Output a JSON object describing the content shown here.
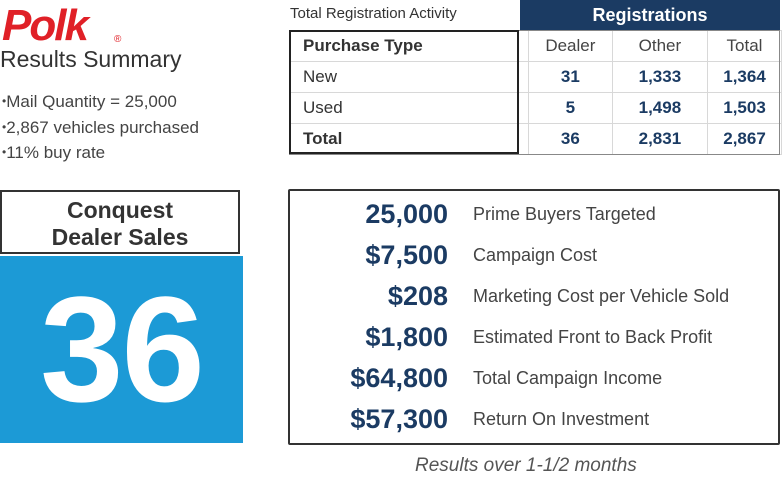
{
  "brand": {
    "logo_text": "Polk",
    "logo_mark": "®",
    "color": "#e02027"
  },
  "summary": {
    "title": "Results Summary",
    "bullets": [
      "Mail Quantity = 25,000",
      "2,867 vehicles purchased",
      "11% buy rate"
    ]
  },
  "conquest": {
    "line1": "Conquest",
    "line2": "Dealer Sales",
    "value": "36",
    "accent": "#1c9ad6"
  },
  "registration": {
    "title": "Total Registration Activity",
    "group_header": "Registrations",
    "header_color": "#1b3b63",
    "columns": [
      "Purchase Type",
      "Dealer",
      "Other",
      "Total"
    ],
    "rows": [
      {
        "type": "New",
        "dealer": "31",
        "other": "1,333",
        "total": "1,364"
      },
      {
        "type": "Used",
        "dealer": "5",
        "other": "1,498",
        "total": "1,503"
      },
      {
        "type": "Total",
        "dealer": "36",
        "other": "2,831",
        "total": "2,867"
      }
    ]
  },
  "metrics": [
    {
      "value": "25,000",
      "label": "Prime Buyers Targeted"
    },
    {
      "value": "$7,500",
      "label": "Campaign Cost"
    },
    {
      "value": "$208",
      "label": "Marketing Cost per Vehicle Sold"
    },
    {
      "value": "$1,800",
      "label": "Estimated Front to Back Profit"
    },
    {
      "value": "$64,800",
      "label": "Total Campaign Income"
    },
    {
      "value": "$57,300",
      "label": "Return On Investment"
    }
  ],
  "footer": "Results over 1-1/2 months"
}
